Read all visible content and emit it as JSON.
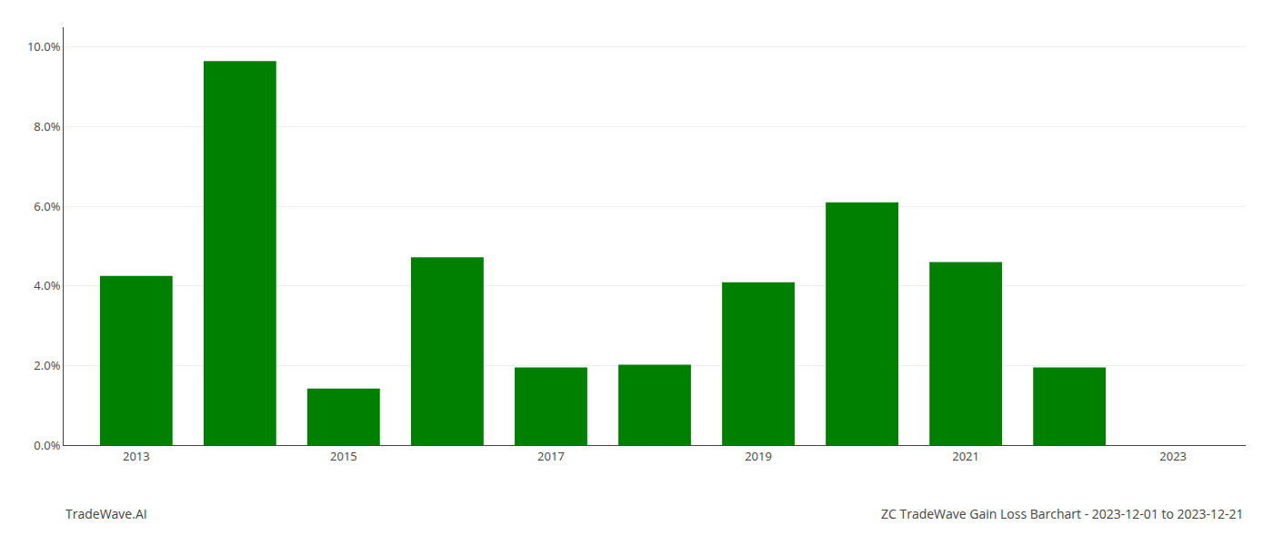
{
  "chart_data": {
    "type": "bar",
    "title": "ZC TradeWave Gain Loss Barchart - 2023-12-01 to 2023-12-21",
    "annotations": [
      {
        "text": "TradeWave.AI"
      }
    ],
    "x": [
      2013,
      2014,
      2015,
      2016,
      2017,
      2018,
      2019,
      2020,
      2021,
      2022,
      2023
    ],
    "values": [
      0.0425,
      0.0965,
      0.0142,
      0.0472,
      0.0195,
      0.0202,
      0.0409,
      0.061,
      0.046,
      0.0195,
      0.0
    ],
    "color": "#008000",
    "xlim": [
      2012.3,
      2023.7
    ],
    "xticks": [
      2013,
      2015,
      2017,
      2019,
      2021,
      2023
    ],
    "ylim": [
      0,
      0.105
    ],
    "yticks": [
      {
        "value": 0.0,
        "label": "0.0%"
      },
      {
        "value": 0.02,
        "label": "2.0%"
      },
      {
        "value": 0.04,
        "label": "4.0%"
      },
      {
        "value": 0.06,
        "label": "6.0%"
      },
      {
        "value": 0.08,
        "label": "8.0%"
      },
      {
        "value": 0.1,
        "label": "10.0%"
      }
    ],
    "grid": true
  }
}
